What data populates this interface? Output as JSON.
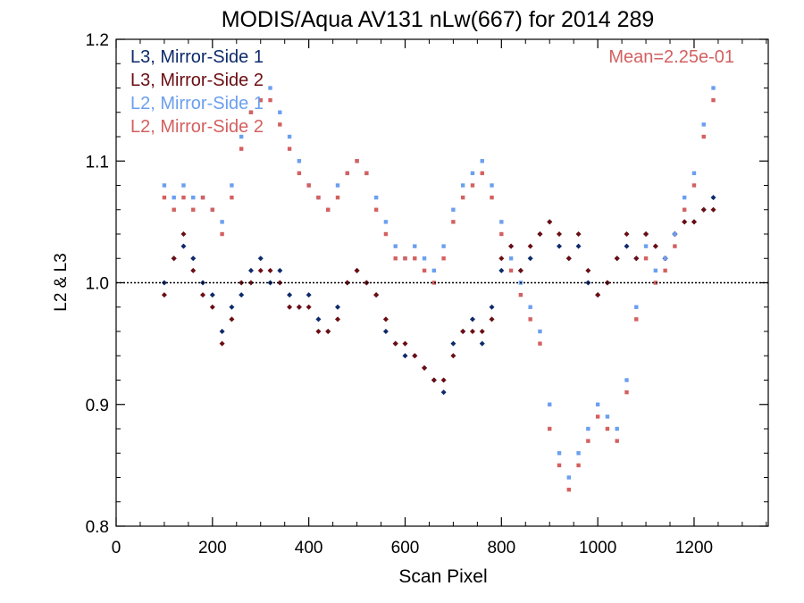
{
  "chart_data": {
    "type": "scatter",
    "title": "MODIS/Aqua AV131 nLw(667) for 2014 289",
    "xlabel": "Scan Pixel",
    "ylabel": "L2 & L3",
    "xlim": [
      0,
      1354
    ],
    "ylim": [
      0.8,
      1.2
    ],
    "x_ticks": [
      "0",
      "200",
      "400",
      "600",
      "800",
      "1000",
      "1200"
    ],
    "y_ticks": [
      "0.8",
      "0.9",
      "1.0",
      "1.1",
      "1.2"
    ],
    "reference_line": 1.0,
    "annotation": "Mean=2.25e-01",
    "annotation_color": "#d46060",
    "legend_position": "top-left",
    "series": [
      {
        "name": "L3, Mirror-Side 1",
        "color": "#0d2a6b",
        "marker": "diamond",
        "points": [
          [
            100,
            1.0
          ],
          [
            120,
            1.02
          ],
          [
            140,
            1.03
          ],
          [
            160,
            1.02
          ],
          [
            180,
            1.0
          ],
          [
            200,
            0.99
          ],
          [
            220,
            0.96
          ],
          [
            240,
            0.98
          ],
          [
            260,
            0.99
          ],
          [
            280,
            1.01
          ],
          [
            300,
            1.02
          ],
          [
            320,
            1.0
          ],
          [
            340,
            1.01
          ],
          [
            360,
            0.99
          ],
          [
            380,
            0.98
          ],
          [
            400,
            0.99
          ],
          [
            420,
            0.97
          ],
          [
            440,
            0.96
          ],
          [
            460,
            0.98
          ],
          [
            480,
            1.0
          ],
          [
            500,
            1.01
          ],
          [
            520,
            1.0
          ],
          [
            540,
            0.99
          ],
          [
            560,
            0.96
          ],
          [
            580,
            0.95
          ],
          [
            600,
            0.94
          ],
          [
            620,
            0.94
          ],
          [
            640,
            0.93
          ],
          [
            660,
            0.92
          ],
          [
            680,
            0.91
          ],
          [
            700,
            0.95
          ],
          [
            720,
            0.96
          ],
          [
            740,
            0.97
          ],
          [
            760,
            0.95
          ],
          [
            780,
            0.98
          ],
          [
            800,
            1.01
          ],
          [
            820,
            1.03
          ],
          [
            840,
            1.01
          ],
          [
            860,
            1.02
          ],
          [
            880,
            1.04
          ],
          [
            900,
            1.05
          ],
          [
            920,
            1.03
          ],
          [
            940,
            1.02
          ],
          [
            960,
            1.03
          ],
          [
            980,
            1.0
          ],
          [
            1000,
            0.99
          ],
          [
            1020,
            1.0
          ],
          [
            1040,
            1.02
          ],
          [
            1060,
            1.03
          ],
          [
            1080,
            1.02
          ],
          [
            1100,
            1.04
          ],
          [
            1120,
            1.03
          ],
          [
            1140,
            1.02
          ],
          [
            1160,
            1.04
          ],
          [
            1180,
            1.05
          ],
          [
            1200,
            1.05
          ],
          [
            1220,
            1.06
          ],
          [
            1240,
            1.07
          ]
        ]
      },
      {
        "name": "L3, Mirror-Side 2",
        "color": "#6b0d12",
        "marker": "diamond",
        "points": [
          [
            100,
            0.99
          ],
          [
            120,
            1.02
          ],
          [
            140,
            1.04
          ],
          [
            160,
            1.01
          ],
          [
            180,
            0.99
          ],
          [
            200,
            0.98
          ],
          [
            220,
            0.95
          ],
          [
            240,
            0.97
          ],
          [
            260,
            1.0
          ],
          [
            280,
            1.0
          ],
          [
            300,
            1.01
          ],
          [
            320,
            1.01
          ],
          [
            340,
            1.0
          ],
          [
            360,
            0.98
          ],
          [
            380,
            0.98
          ],
          [
            400,
            0.98
          ],
          [
            420,
            0.96
          ],
          [
            440,
            0.96
          ],
          [
            460,
            0.97
          ],
          [
            480,
            1.0
          ],
          [
            500,
            1.01
          ],
          [
            520,
            1.0
          ],
          [
            540,
            0.99
          ],
          [
            560,
            0.97
          ],
          [
            580,
            0.95
          ],
          [
            600,
            0.95
          ],
          [
            620,
            0.94
          ],
          [
            640,
            0.93
          ],
          [
            660,
            0.92
          ],
          [
            680,
            0.92
          ],
          [
            700,
            0.94
          ],
          [
            720,
            0.96
          ],
          [
            740,
            0.96
          ],
          [
            760,
            0.96
          ],
          [
            780,
            0.97
          ],
          [
            800,
            1.02
          ],
          [
            820,
            1.03
          ],
          [
            840,
            1.01
          ],
          [
            860,
            1.03
          ],
          [
            880,
            1.04
          ],
          [
            900,
            1.05
          ],
          [
            920,
            1.04
          ],
          [
            940,
            1.02
          ],
          [
            960,
            1.04
          ],
          [
            980,
            1.01
          ],
          [
            1000,
            0.99
          ],
          [
            1020,
            1.0
          ],
          [
            1040,
            1.02
          ],
          [
            1060,
            1.04
          ],
          [
            1080,
            1.02
          ],
          [
            1100,
            1.04
          ],
          [
            1120,
            1.03
          ],
          [
            1140,
            1.02
          ],
          [
            1160,
            1.04
          ],
          [
            1180,
            1.05
          ],
          [
            1200,
            1.05
          ],
          [
            1220,
            1.06
          ],
          [
            1240,
            1.06
          ]
        ]
      },
      {
        "name": "L2, Mirror-Side 1",
        "color": "#6b9ff0",
        "marker": "square",
        "points": [
          [
            100,
            1.08
          ],
          [
            120,
            1.07
          ],
          [
            140,
            1.08
          ],
          [
            160,
            1.07
          ],
          [
            180,
            1.07
          ],
          [
            200,
            1.06
          ],
          [
            220,
            1.05
          ],
          [
            240,
            1.08
          ],
          [
            260,
            1.12
          ],
          [
            280,
            1.14
          ],
          [
            300,
            1.15
          ],
          [
            320,
            1.16
          ],
          [
            340,
            1.14
          ],
          [
            360,
            1.12
          ],
          [
            380,
            1.1
          ],
          [
            400,
            1.08
          ],
          [
            420,
            1.07
          ],
          [
            440,
            1.06
          ],
          [
            460,
            1.08
          ],
          [
            480,
            1.09
          ],
          [
            500,
            1.1
          ],
          [
            520,
            1.09
          ],
          [
            540,
            1.07
          ],
          [
            560,
            1.05
          ],
          [
            580,
            1.03
          ],
          [
            600,
            1.02
          ],
          [
            620,
            1.03
          ],
          [
            640,
            1.02
          ],
          [
            660,
            1.01
          ],
          [
            680,
            1.03
          ],
          [
            700,
            1.06
          ],
          [
            720,
            1.08
          ],
          [
            740,
            1.09
          ],
          [
            760,
            1.1
          ],
          [
            780,
            1.08
          ],
          [
            800,
            1.05
          ],
          [
            820,
            1.02
          ],
          [
            840,
            1.0
          ],
          [
            860,
            0.98
          ],
          [
            880,
            0.96
          ],
          [
            900,
            0.9
          ],
          [
            920,
            0.86
          ],
          [
            940,
            0.84
          ],
          [
            960,
            0.86
          ],
          [
            980,
            0.88
          ],
          [
            1000,
            0.9
          ],
          [
            1020,
            0.89
          ],
          [
            1040,
            0.88
          ],
          [
            1060,
            0.92
          ],
          [
            1080,
            0.98
          ],
          [
            1100,
            1.03
          ],
          [
            1120,
            1.01
          ],
          [
            1140,
            1.02
          ],
          [
            1160,
            1.04
          ],
          [
            1180,
            1.07
          ],
          [
            1200,
            1.09
          ],
          [
            1220,
            1.13
          ],
          [
            1240,
            1.16
          ]
        ]
      },
      {
        "name": "L2, Mirror-Side 2",
        "color": "#d46060",
        "marker": "square",
        "points": [
          [
            100,
            1.07
          ],
          [
            120,
            1.06
          ],
          [
            140,
            1.07
          ],
          [
            160,
            1.06
          ],
          [
            180,
            1.07
          ],
          [
            200,
            1.06
          ],
          [
            220,
            1.04
          ],
          [
            240,
            1.07
          ],
          [
            260,
            1.11
          ],
          [
            280,
            1.14
          ],
          [
            300,
            1.15
          ],
          [
            320,
            1.15
          ],
          [
            340,
            1.13
          ],
          [
            360,
            1.11
          ],
          [
            380,
            1.09
          ],
          [
            400,
            1.08
          ],
          [
            420,
            1.07
          ],
          [
            440,
            1.06
          ],
          [
            460,
            1.07
          ],
          [
            480,
            1.09
          ],
          [
            500,
            1.1
          ],
          [
            520,
            1.09
          ],
          [
            540,
            1.06
          ],
          [
            560,
            1.04
          ],
          [
            580,
            1.02
          ],
          [
            600,
            1.02
          ],
          [
            620,
            1.02
          ],
          [
            640,
            1.01
          ],
          [
            660,
            1.0
          ],
          [
            680,
            1.02
          ],
          [
            700,
            1.05
          ],
          [
            720,
            1.07
          ],
          [
            740,
            1.08
          ],
          [
            760,
            1.09
          ],
          [
            780,
            1.07
          ],
          [
            800,
            1.04
          ],
          [
            820,
            1.01
          ],
          [
            840,
            0.99
          ],
          [
            860,
            0.97
          ],
          [
            880,
            0.95
          ],
          [
            900,
            0.88
          ],
          [
            920,
            0.85
          ],
          [
            940,
            0.83
          ],
          [
            960,
            0.85
          ],
          [
            980,
            0.87
          ],
          [
            1000,
            0.89
          ],
          [
            1020,
            0.88
          ],
          [
            1040,
            0.87
          ],
          [
            1060,
            0.91
          ],
          [
            1080,
            0.97
          ],
          [
            1100,
            1.02
          ],
          [
            1120,
            1.0
          ],
          [
            1140,
            1.01
          ],
          [
            1160,
            1.03
          ],
          [
            1180,
            1.06
          ],
          [
            1200,
            1.08
          ],
          [
            1220,
            1.12
          ],
          [
            1240,
            1.15
          ]
        ]
      }
    ]
  }
}
